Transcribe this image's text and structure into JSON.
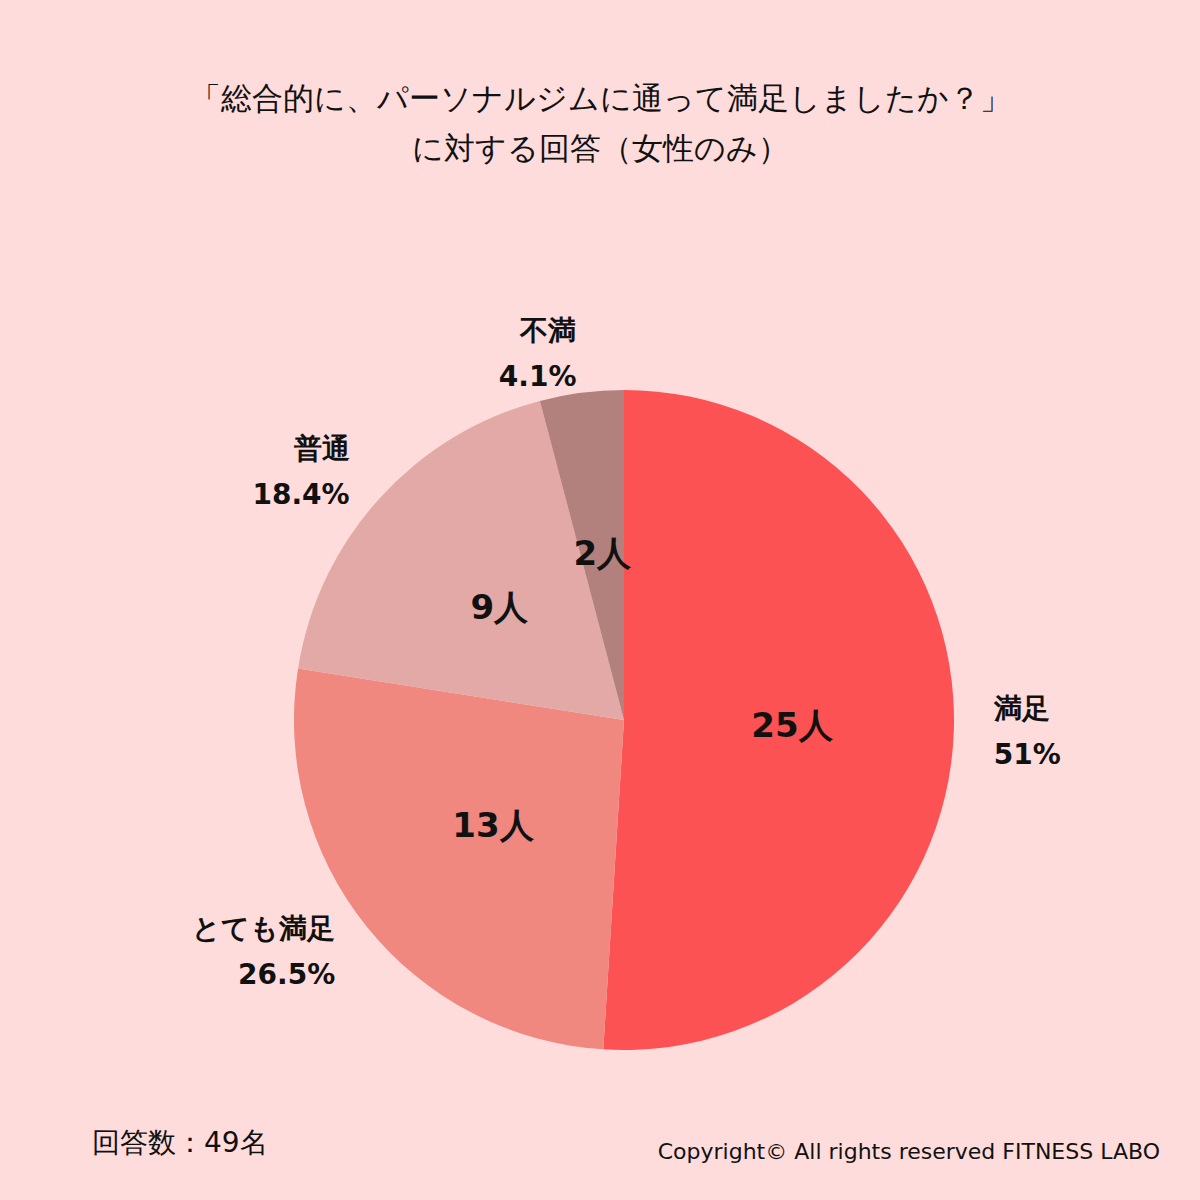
{
  "chart_data": {
    "type": "pie",
    "title": "「総合的に、パーソナルジムに通って満足しましたか？」\nに対する回答（女性のみ）",
    "categories": [
      "満足",
      "とても満足",
      "普通",
      "不満"
    ],
    "values": [
      51,
      26.5,
      18.4,
      4.1
    ],
    "value_labels": [
      "51%",
      "26.5%",
      "18.4%",
      "4.1%"
    ],
    "count_labels": [
      "25人",
      "13人",
      "9人",
      "2人"
    ],
    "colors": [
      "#fc5253",
      "#f08880",
      "#e2a9a6",
      "#b2817d"
    ],
    "data_labels": true,
    "note": "回答数：49名",
    "source": "Copyright© All rights reserved FITNESS LABO"
  }
}
